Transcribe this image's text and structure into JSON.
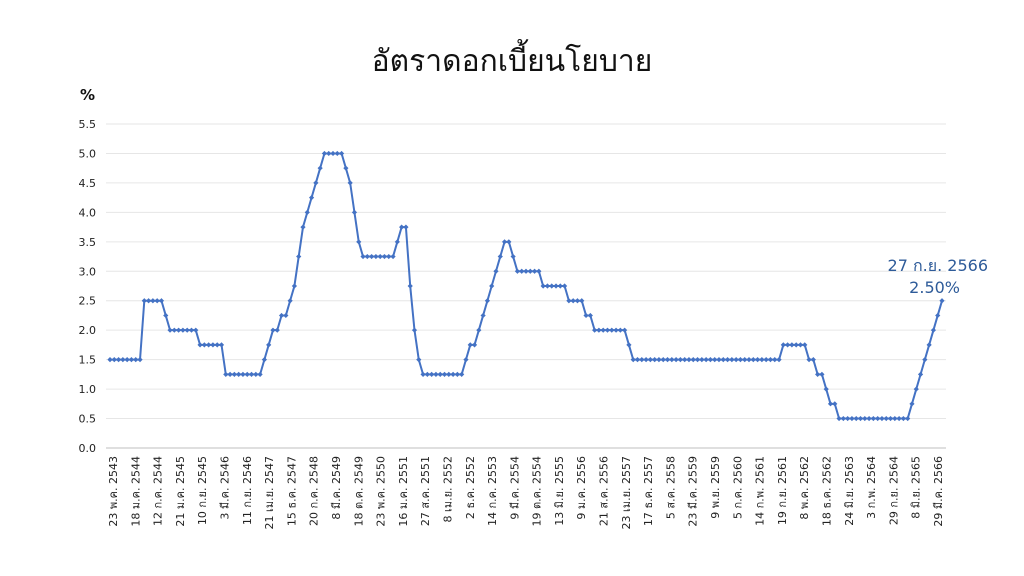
{
  "chart_data": {
    "type": "line",
    "title": "อัตราดอกเบี้ยนโยบาย",
    "ylabel": "%",
    "xlabel": "",
    "ylim": [
      0,
      5.5
    ],
    "yticks": [
      "0.0",
      "0.5",
      "1.0",
      "1.5",
      "2.0",
      "2.5",
      "3.0",
      "3.5",
      "4.0",
      "4.5",
      "5.0",
      "5.5"
    ],
    "grid": true,
    "line_color": "#4472C4",
    "x_tick_labels": [
      "23 พ.ค. 2543",
      "18 ม.ค. 2544",
      "12 ก.ค. 2544",
      "21 ม.ค. 2545",
      "10 ก.ย. 2545",
      "3 มี.ค. 2546",
      "11 ก.ย. 2546",
      "21 เม.ย. 2547",
      "15 ธ.ค. 2547",
      "20 ก.ค. 2548",
      "8 มี.ค. 2549",
      "18 ต.ค. 2549",
      "23 พ.ค. 2550",
      "16 ม.ค. 2551",
      "27 ส.ค. 2551",
      "8 เม.ย. 2552",
      "2 ธ.ค. 2552",
      "14 ก.ค. 2553",
      "9 มี.ค. 2554",
      "19 ต.ค. 2554",
      "13 มิ.ย. 2555",
      "9 ม.ค. 2556",
      "21 ส.ค. 2556",
      "23 เม.ย. 2557",
      "17 ธ.ค. 2557",
      "5 ส.ค. 2558",
      "23 มี.ค. 2559",
      "9 พ.ย. 2559",
      "5 ก.ค. 2560",
      "14 ก.พ. 2561",
      "19 ก.ย. 2561",
      "8 พ.ค. 2562",
      "18 ธ.ค. 2562",
      "24 มิ.ย. 2563",
      "3 ก.พ. 2564",
      "29 ก.ย. 2564",
      "8 มิ.ย. 2565",
      "29 มี.ค. 2566"
    ],
    "series": [
      {
        "values": [
          1.5,
          1.5,
          1.5,
          1.5,
          1.5,
          1.5,
          1.5,
          1.5,
          2.5,
          2.5,
          2.5,
          2.5,
          2.5,
          2.25,
          2.0,
          2.0,
          2.0,
          2.0,
          2.0,
          2.0,
          2.0,
          1.75,
          1.75,
          1.75,
          1.75,
          1.75,
          1.75,
          1.25,
          1.25,
          1.25,
          1.25,
          1.25,
          1.25,
          1.25,
          1.25,
          1.25,
          1.5,
          1.75,
          2.0,
          2.0,
          2.25,
          2.25,
          2.5,
          2.75,
          3.25,
          3.75,
          4.0,
          4.25,
          4.5,
          4.75,
          5.0,
          5.0,
          5.0,
          5.0,
          5.0,
          4.75,
          4.5,
          4.0,
          3.5,
          3.25,
          3.25,
          3.25,
          3.25,
          3.25,
          3.25,
          3.25,
          3.25,
          3.5,
          3.75,
          3.75,
          2.75,
          2.0,
          1.5,
          1.25,
          1.25,
          1.25,
          1.25,
          1.25,
          1.25,
          1.25,
          1.25,
          1.25,
          1.25,
          1.5,
          1.75,
          1.75,
          2.0,
          2.25,
          2.5,
          2.75,
          3.0,
          3.25,
          3.5,
          3.5,
          3.25,
          3.0,
          3.0,
          3.0,
          3.0,
          3.0,
          3.0,
          2.75,
          2.75,
          2.75,
          2.75,
          2.75,
          2.75,
          2.5,
          2.5,
          2.5,
          2.5,
          2.25,
          2.25,
          2.0,
          2.0,
          2.0,
          2.0,
          2.0,
          2.0,
          2.0,
          2.0,
          1.75,
          1.5,
          1.5,
          1.5,
          1.5,
          1.5,
          1.5,
          1.5,
          1.5,
          1.5,
          1.5,
          1.5,
          1.5,
          1.5,
          1.5,
          1.5,
          1.5,
          1.5,
          1.5,
          1.5,
          1.5,
          1.5,
          1.5,
          1.5,
          1.5,
          1.5,
          1.5,
          1.5,
          1.5,
          1.5,
          1.5,
          1.5,
          1.5,
          1.5,
          1.5,
          1.5,
          1.75,
          1.75,
          1.75,
          1.75,
          1.75,
          1.75,
          1.5,
          1.5,
          1.25,
          1.25,
          1.0,
          0.75,
          0.75,
          0.5,
          0.5,
          0.5,
          0.5,
          0.5,
          0.5,
          0.5,
          0.5,
          0.5,
          0.5,
          0.5,
          0.5,
          0.5,
          0.5,
          0.5,
          0.5,
          0.5,
          0.75,
          1.0,
          1.25,
          1.5,
          1.75,
          2.0,
          2.25,
          2.5
        ]
      }
    ],
    "annotation": {
      "date": "27 ก.ย. 2566",
      "value": "2.50%"
    }
  }
}
